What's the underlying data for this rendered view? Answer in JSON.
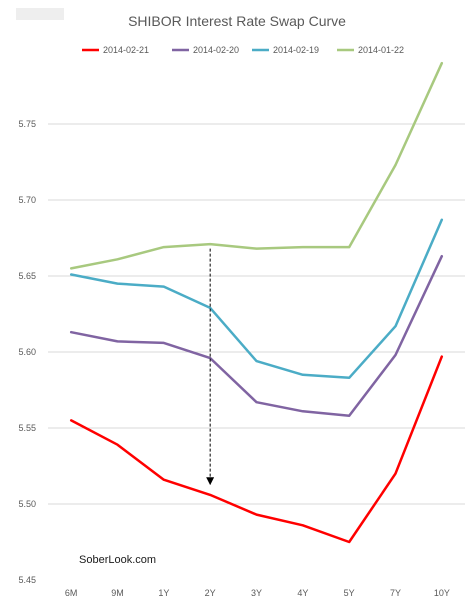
{
  "chart_data": {
    "type": "line",
    "title": "SHIBOR Interest Rate Swap Curve",
    "xlabel": "",
    "ylabel": "",
    "categories": [
      "6M",
      "9M",
      "1Y",
      "2Y",
      "3Y",
      "4Y",
      "5Y",
      "7Y",
      "10Y"
    ],
    "ylim": [
      5.45,
      5.8
    ],
    "yticks": [
      "5.45",
      "5.50",
      "5.55",
      "5.60",
      "5.65",
      "5.70",
      "5.75"
    ],
    "ytick_values": [
      5.45,
      5.5,
      5.55,
      5.6,
      5.65,
      5.7,
      5.75
    ],
    "grid": true,
    "legend_position": "top",
    "series": [
      {
        "name": "2014-02-21",
        "color": "#ff0000",
        "values": [
          5.555,
          5.539,
          5.516,
          5.506,
          5.493,
          5.486,
          5.475,
          5.52,
          5.597
        ]
      },
      {
        "name": "2014-02-20",
        "color": "#8064a2",
        "values": [
          5.613,
          5.607,
          5.606,
          5.596,
          5.567,
          5.561,
          5.558,
          5.598,
          5.663
        ]
      },
      {
        "name": "2014-02-19",
        "color": "#4bacc6",
        "values": [
          5.651,
          5.645,
          5.643,
          5.629,
          5.594,
          5.585,
          5.583,
          5.617,
          5.687
        ]
      },
      {
        "name": "2014-01-22",
        "color": "#a8c97f",
        "values": [
          5.655,
          5.661,
          5.669,
          5.671,
          5.668,
          5.669,
          5.669,
          5.723,
          5.79
        ]
      }
    ],
    "annotations": [
      {
        "type": "arrow",
        "category": "2Y",
        "from": 5.668,
        "to": 5.515,
        "style": "dashed",
        "color": "#000000"
      }
    ],
    "watermark": "SoberLook.com"
  }
}
